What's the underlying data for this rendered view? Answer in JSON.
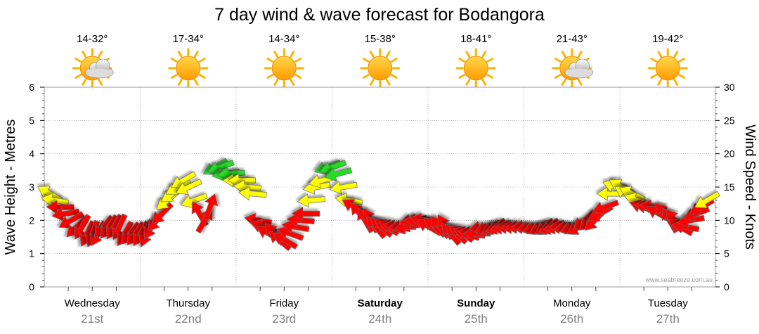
{
  "chart_data": {
    "type": "wind-wave-forecast",
    "title": "7 day wind & wave forecast for Bodangora",
    "ylabel_left": "Wave Height - Metres",
    "ylabel_right": "Wind Speed - Knots",
    "ylim_left": [
      0,
      6
    ],
    "ylim_right": [
      0,
      30
    ],
    "left_ticks": [
      "0",
      "1",
      "2",
      "3",
      "4",
      "5",
      "6"
    ],
    "right_ticks": [
      "0",
      "5",
      "10",
      "15",
      "20",
      "25",
      "30"
    ],
    "credit": "www.seabreeze.com.au",
    "days": [
      {
        "name": "Wednesday",
        "date": "21st",
        "temp": "14-32°",
        "weather": "partly-cloudy-icon",
        "bold": false
      },
      {
        "name": "Thursday",
        "date": "22nd",
        "temp": "17-34°",
        "weather": "sunny-icon",
        "bold": false
      },
      {
        "name": "Friday",
        "date": "23rd",
        "temp": "14-34°",
        "weather": "sunny-icon",
        "bold": false
      },
      {
        "name": "Saturday",
        "date": "24th",
        "temp": "15-38°",
        "weather": "sunny-icon",
        "bold": true
      },
      {
        "name": "Sunday",
        "date": "25th",
        "temp": "18-41°",
        "weather": "sunny-icon",
        "bold": true
      },
      {
        "name": "Monday",
        "date": "26th",
        "temp": "21-43°",
        "weather": "partly-cloudy-icon",
        "bold": false
      },
      {
        "name": "Tuesday",
        "date": "27th",
        "temp": "19-42°",
        "weather": "sunny-icon",
        "bold": false
      }
    ],
    "colors": {
      "light": "#ff0000",
      "moderate": "#ffff00",
      "strong": "#22dd22",
      "grid": "#888888"
    },
    "wind_speed_knots": [
      14,
      13,
      12,
      11,
      10,
      9,
      9,
      8,
      8,
      8,
      9,
      9,
      9,
      9,
      8,
      8,
      8,
      8,
      8,
      9,
      10,
      11,
      13,
      14,
      15,
      16,
      15,
      13,
      11,
      10,
      12,
      18,
      18,
      17,
      17,
      16,
      16,
      15,
      14,
      10,
      9,
      8,
      8,
      7,
      7,
      8,
      9,
      10,
      11,
      13,
      15,
      16,
      18,
      18,
      17,
      15,
      13,
      12,
      11,
      10,
      10,
      9,
      9,
      9,
      9,
      9,
      9,
      9,
      10,
      10,
      10,
      9,
      9,
      9,
      9,
      8,
      8,
      8,
      8,
      8,
      8,
      9,
      9,
      9,
      9,
      9,
      9,
      9,
      9,
      9,
      9,
      9,
      9,
      9,
      9,
      9,
      9,
      9,
      9,
      9,
      10,
      10,
      10,
      11,
      12,
      14,
      15,
      15,
      14,
      14,
      13,
      12,
      12,
      12,
      11,
      11,
      10,
      10,
      9,
      9,
      10,
      11,
      12,
      13
    ],
    "wind_dir_deg": [
      120,
      100,
      90,
      80,
      60,
      45,
      30,
      25,
      20,
      30,
      40,
      35,
      30,
      25,
      30,
      40,
      35,
      30,
      20,
      30,
      40,
      45,
      50,
      55,
      60,
      60,
      65,
      70,
      150,
      210,
      200,
      60,
      70,
      80,
      85,
      90,
      90,
      95,
      95,
      100,
      110,
      120,
      140,
      130,
      120,
      110,
      100,
      95,
      90,
      85,
      80,
      75,
      70,
      70,
      75,
      80,
      100,
      120,
      140,
      150,
      150,
      140,
      130,
      120,
      110,
      100,
      90,
      80,
      80,
      90,
      100,
      120,
      130,
      140,
      150,
      140,
      130,
      120,
      110,
      100,
      90,
      80,
      70,
      60,
      70,
      80,
      90,
      90,
      90,
      90,
      80,
      70,
      60,
      60,
      70,
      80,
      90,
      80,
      70,
      60,
      50,
      45,
      45,
      60,
      70,
      90,
      110,
      120,
      120,
      115,
      110,
      110,
      100,
      100,
      120,
      140,
      150,
      140,
      120,
      100,
      80,
      70,
      60,
      60
    ]
  }
}
